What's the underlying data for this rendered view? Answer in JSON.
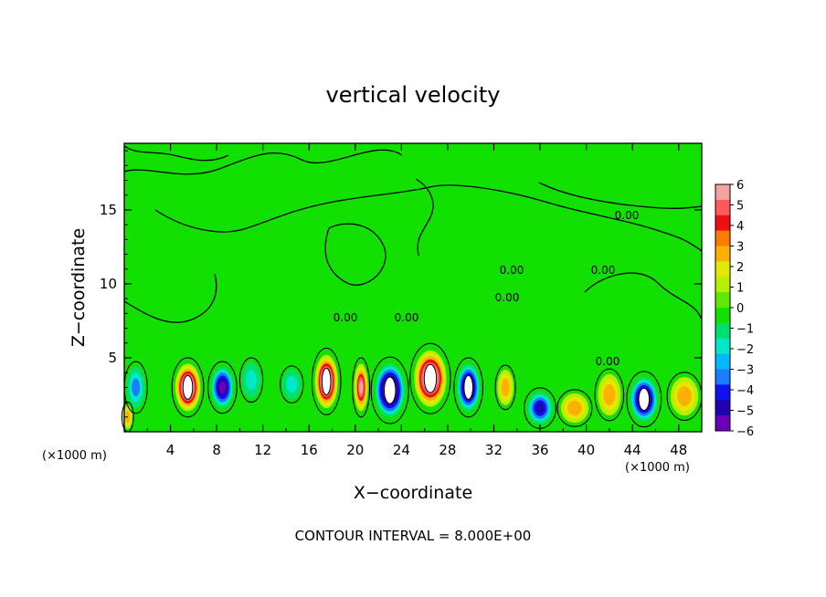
{
  "chart_data": {
    "type": "heatmap",
    "title": "vertical velocity",
    "xlabel": "X−coordinate",
    "ylabel": "Z−coordinate",
    "x_units_left": "(×1000 m)",
    "x_units_right": "(×1000 m)",
    "footer": "CONTOUR INTERVAL = 8.000E+00",
    "contour_label": "0.00",
    "xlim": [
      0,
      50
    ],
    "ylim": [
      0,
      19.5
    ],
    "x_ticks": [
      4,
      8,
      12,
      16,
      20,
      24,
      28,
      32,
      36,
      40,
      44,
      48
    ],
    "y_ticks": [
      5,
      10,
      15
    ],
    "colorbar": {
      "ticks": [
        6,
        5,
        4,
        3,
        2,
        1,
        0,
        -1,
        -2,
        -3,
        -4,
        -5,
        -6
      ],
      "tick_labels": [
        "6",
        "5",
        "4",
        "3",
        "2",
        "1",
        "0",
        "−1",
        "−2",
        "−3",
        "−4",
        "−5",
        "−6"
      ],
      "colors": [
        "#f4a3a3",
        "#ff5a5a",
        "#ee1010",
        "#ff7a00",
        "#ffb000",
        "#e2e800",
        "#b8ee00",
        "#5ee800",
        "#12e000",
        "#00e070",
        "#00e8c8",
        "#00b8ff",
        "#1a7cff",
        "#1010f0",
        "#2000b0",
        "#6a00b8"
      ]
    },
    "features": [
      {
        "x": 5.5,
        "z": 3.0,
        "value": 8,
        "sx": 1.1,
        "sz": 1.6
      },
      {
        "x": 8.5,
        "z": 3.0,
        "value": -6,
        "sx": 1.0,
        "sz": 1.4
      },
      {
        "x": 17.5,
        "z": 3.4,
        "value": 8,
        "sx": 1.0,
        "sz": 1.8
      },
      {
        "x": 20.5,
        "z": 3.0,
        "value": 6,
        "sx": 0.6,
        "sz": 1.6
      },
      {
        "x": 23.0,
        "z": 2.8,
        "value": -8,
        "sx": 1.3,
        "sz": 1.8
      },
      {
        "x": 26.5,
        "z": 3.6,
        "value": 8,
        "sx": 1.4,
        "sz": 1.9
      },
      {
        "x": 29.8,
        "z": 3.0,
        "value": -7,
        "sx": 1.0,
        "sz": 1.6
      },
      {
        "x": 33.0,
        "z": 3.0,
        "value": 3.5,
        "sx": 0.7,
        "sz": 1.2
      },
      {
        "x": 36.0,
        "z": 1.6,
        "value": -5,
        "sx": 1.1,
        "sz": 1.1
      },
      {
        "x": 39.0,
        "z": 1.6,
        "value": 3.5,
        "sx": 1.2,
        "sz": 1.0
      },
      {
        "x": 42.0,
        "z": 2.5,
        "value": 3.5,
        "sx": 1.0,
        "sz": 1.4
      },
      {
        "x": 45.0,
        "z": 2.2,
        "value": -7,
        "sx": 1.2,
        "sz": 1.5
      },
      {
        "x": 48.5,
        "z": 2.4,
        "value": 3.5,
        "sx": 1.2,
        "sz": 1.3
      },
      {
        "x": 1.0,
        "z": 3.0,
        "value": -3,
        "sx": 0.8,
        "sz": 1.4
      },
      {
        "x": 0.3,
        "z": 1.0,
        "value": 3.5,
        "sx": 0.4,
        "sz": 0.8
      },
      {
        "x": 11.0,
        "z": 3.5,
        "value": -2,
        "sx": 0.8,
        "sz": 1.2
      },
      {
        "x": 14.5,
        "z": 3.2,
        "value": -2,
        "sx": 0.8,
        "sz": 1.0
      }
    ]
  }
}
